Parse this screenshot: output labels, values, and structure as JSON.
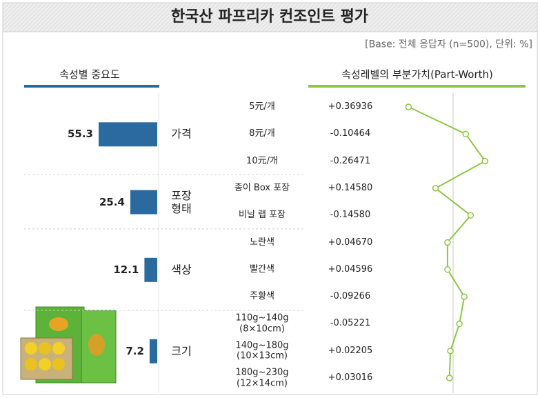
{
  "title": "한국산 파프리카 컨조인트 평가",
  "note": "[Base: 전체 응답자 (n=500), 단위: %]",
  "chart_data": [
    {
      "type": "bar",
      "title": "속성별 중요도",
      "orientation": "horizontal",
      "categories": [
        "가격",
        "포장 형태",
        "색상",
        "크기"
      ],
      "values": [
        55.3,
        25.4,
        12.1,
        7.2
      ],
      "color": "#2b6a9e"
    },
    {
      "type": "line",
      "title": "속성레벨의 부분가치(Part-Worth)",
      "categories": [
        [
          "5元/개",
          "8元/개",
          "10元/개"
        ],
        [
          "종이 Box 포장",
          "비닐 랩 포장"
        ],
        [
          "노란색",
          "빨간색",
          "주황색"
        ],
        [
          "110g~140g (8×10cm)",
          "140g~180g (10×13cm)",
          "180g~230g (12×14cm)"
        ]
      ],
      "values": [
        [
          0.36936,
          -0.10464,
          -0.26471
        ],
        [
          0.1458,
          -0.1458
        ],
        [
          0.0467,
          0.04596,
          -0.09266
        ],
        [
          -0.05221,
          0.02205,
          0.03016
        ]
      ],
      "value_labels": [
        [
          "+0.36936",
          "-0.10464",
          "-0.26471"
        ],
        [
          "+0.14580",
          "-0.14580"
        ],
        [
          "+0.04670",
          "+0.04596",
          "-0.09266"
        ],
        [
          "-0.05221",
          "+0.02205",
          "+0.03016"
        ]
      ],
      "color": "#8dc63f",
      "zero_line": true
    }
  ]
}
